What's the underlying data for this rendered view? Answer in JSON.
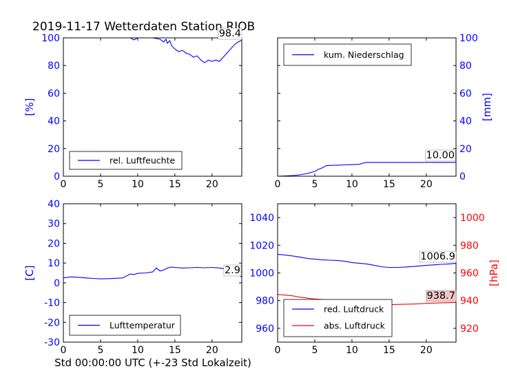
{
  "title": "2019-11-17 Wetterdaten Station RJOB",
  "xlabel": "Std 00:00:00 UTC (+-23 Std Lokalzeit)",
  "colors": {
    "blue": "#0000ff",
    "red": "#ff0000",
    "label_bg": "#f2c6c6"
  },
  "chart_data": [
    {
      "type": "line",
      "id": "humidity",
      "ylabel": "[%]",
      "ylabel_side": "left",
      "xlim": [
        0,
        24
      ],
      "ylim": [
        0,
        100
      ],
      "xticks": [
        0,
        5,
        10,
        15,
        20
      ],
      "yticks": [
        0,
        20,
        40,
        60,
        80,
        100
      ],
      "legend_position": "lower left",
      "value_label": "98.4",
      "series": [
        {
          "name": "rel. Luftfeuchte",
          "color": "#0000ff",
          "x": [
            0,
            2,
            4,
            6,
            8,
            9,
            9.5,
            10,
            11,
            12,
            13,
            13.5,
            13.8,
            14,
            14.3,
            14.6,
            15,
            15.5,
            16,
            16.5,
            17,
            17.5,
            18,
            18.5,
            19,
            19.5,
            20,
            20.5,
            21,
            21.5,
            22,
            22.5,
            23,
            23.5,
            24
          ],
          "y": [
            100,
            100,
            100,
            100,
            100,
            100,
            98.5,
            100,
            100,
            100,
            99,
            97,
            99,
            96,
            98,
            94,
            92,
            90,
            91,
            89,
            88,
            86,
            87,
            84,
            82,
            84,
            83,
            84,
            83,
            86,
            89,
            92,
            95,
            97,
            98.4
          ]
        }
      ]
    },
    {
      "type": "line",
      "id": "precipitation",
      "ylabel": "[mm]",
      "ylabel_side": "right",
      "xlim": [
        0,
        24
      ],
      "ylim": [
        0,
        100
      ],
      "xticks": [
        0,
        5,
        10,
        15,
        20
      ],
      "yticks": [
        0,
        20,
        40,
        60,
        80,
        100
      ],
      "legend_position": "upper left",
      "value_label": "10.00",
      "series": [
        {
          "name": "kum. Niederschlag",
          "color": "#0000ff",
          "x": [
            0,
            1,
            2,
            3,
            4,
            5,
            5.5,
            6,
            6.5,
            7,
            8,
            9,
            10,
            11,
            11.5,
            12,
            13,
            14,
            16,
            18,
            20,
            22,
            24
          ],
          "y": [
            0,
            0.2,
            0.5,
            1,
            2,
            3.5,
            5,
            6,
            7.5,
            7.8,
            8,
            8.2,
            8.4,
            8.6,
            9.5,
            10,
            10,
            10,
            10,
            10,
            10,
            10,
            10
          ]
        }
      ]
    },
    {
      "type": "line",
      "id": "temperature",
      "ylabel": "[C]",
      "ylabel_side": "left",
      "xlim": [
        0,
        24
      ],
      "ylim": [
        -30,
        40
      ],
      "xticks": [
        0,
        5,
        10,
        15,
        20
      ],
      "yticks": [
        -30,
        -20,
        -10,
        0,
        10,
        20,
        30,
        40
      ],
      "legend_position": "lower left",
      "value_label": "2.9",
      "series": [
        {
          "name": "Lufttemperatur",
          "color": "#0000ff",
          "x": [
            0,
            1,
            2,
            3,
            4,
            5,
            6,
            7,
            8,
            8.5,
            9,
            9.5,
            10,
            11,
            12,
            12.5,
            13,
            13.5,
            14,
            14.5,
            15,
            16,
            17,
            18,
            19,
            20,
            21,
            22,
            22.5,
            23,
            23.5,
            24
          ],
          "y": [
            2.5,
            3,
            2.8,
            2.5,
            2.2,
            2,
            2.1,
            2.3,
            2.5,
            3.5,
            4.5,
            4.2,
            4.8,
            5,
            5.5,
            7.5,
            6,
            6.5,
            7.5,
            8,
            7.8,
            7.5,
            7.6,
            7.8,
            7.6,
            7.8,
            7.5,
            7,
            6.5,
            5,
            4,
            2.9
          ]
        }
      ]
    },
    {
      "type": "line",
      "id": "pressure",
      "ylabel": "[hPa]",
      "ylabel_side": "right",
      "xlim": [
        0,
        24
      ],
      "ylim": [
        950,
        1050
      ],
      "ylim_right": [
        910,
        1010
      ],
      "xticks": [
        0,
        5,
        10,
        15,
        20
      ],
      "yticks": [
        960,
        980,
        1000,
        1020,
        1040
      ],
      "yticks_right": [
        920,
        940,
        960,
        980,
        1000
      ],
      "legend_position": "lower left",
      "value_label": "1006.9",
      "value_label_right": "938.7",
      "series": [
        {
          "name": "red. Luftdruck",
          "color": "#0000ff",
          "axis": "left",
          "x": [
            0,
            1,
            2,
            3,
            4,
            5,
            6,
            7,
            8,
            9,
            10,
            11,
            12,
            13,
            14,
            15,
            16,
            17,
            18,
            19,
            20,
            21,
            22,
            23,
            24
          ],
          "y": [
            1013.5,
            1013,
            1012.3,
            1011.5,
            1010.5,
            1010,
            1009.5,
            1009.2,
            1009,
            1008.5,
            1007.5,
            1007,
            1006.5,
            1005.5,
            1004.5,
            1004,
            1004,
            1004.2,
            1004.6,
            1005,
            1005.5,
            1005.8,
            1006.2,
            1006.5,
            1006.9
          ]
        },
        {
          "name": "abs. Luftdruck",
          "color": "#ff0000",
          "axis": "right",
          "x": [
            0,
            1,
            2,
            3,
            4,
            5,
            6,
            7,
            8,
            9,
            10,
            11,
            12,
            13,
            14,
            15,
            16,
            17,
            18,
            19,
            20,
            21,
            22,
            23,
            24
          ],
          "y": [
            944.5,
            944,
            943.5,
            942.5,
            941.8,
            941.2,
            940.8,
            940.5,
            940.3,
            940,
            939.5,
            939,
            938.5,
            937.8,
            937.3,
            937,
            937.2,
            937.4,
            937.5,
            937.7,
            938,
            938.2,
            938.4,
            938.5,
            938.7
          ]
        }
      ]
    }
  ]
}
